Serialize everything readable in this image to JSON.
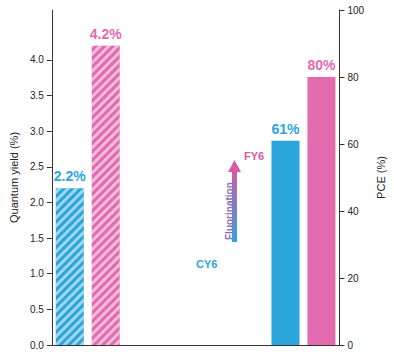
{
  "chart_data": {
    "type": "bar",
    "categories": [
      null,
      null,
      null,
      null,
      null,
      null,
      null,
      null
    ],
    "series": [
      {
        "type": "bar",
        "axis": "y",
        "marker": "hatched",
        "colors": [
          "#2aa6dc",
          "#e36aaf",
          "#2aa6dc",
          "#e36aaf",
          "#2aa6dc",
          "#e36aaf",
          "#2aa6dc",
          "#e36aaf"
        ],
        "values": [
          2.2,
          4.2,
          null,
          null,
          null,
          null,
          null,
          null
        ],
        "value_labels": [
          "2.2%",
          "4.2%",
          null,
          null,
          null,
          null,
          null,
          null
        ]
      },
      {
        "type": "bar",
        "axis": "y2",
        "marker": "solid",
        "colors": [
          "#2aa6dc",
          "#e36aaf",
          "#2aa6dc",
          "#e36aaf",
          "#2aa6dc",
          "#e36aaf",
          "#2aa6dc",
          "#e36aaf"
        ],
        "values": [
          null,
          null,
          null,
          null,
          null,
          null,
          61,
          80
        ],
        "value_labels": [
          null,
          null,
          null,
          null,
          null,
          null,
          "61%",
          "80%"
        ]
      }
    ],
    "y_label": "Quantum yield (%)",
    "y2_label": "PCE (%)",
    "ylim": [
      0,
      4.7
    ],
    "yticks": [
      {
        "value": 0,
        "label": "0.0"
      },
      {
        "value": 0.5,
        "label": "0.5"
      },
      {
        "value": 1,
        "label": "1.0"
      },
      {
        "value": 1.5,
        "label": "1.5"
      },
      {
        "value": 2,
        "label": "2.0"
      },
      {
        "value": 2.5,
        "label": "2.5"
      },
      {
        "value": 3,
        "label": "3.0"
      },
      {
        "value": 3.5,
        "label": "3.5"
      },
      {
        "value": 4,
        "label": "4.0"
      }
    ],
    "y2lim": [
      0,
      100
    ],
    "y2ticks": [
      0,
      20,
      40,
      60,
      80,
      100
    ],
    "data_labels": true,
    "grid": false,
    "tick_labels": "y",
    "annotations": [
      {
        "text": "FY6",
        "color": "#d65aa6"
      },
      {
        "text": "Fluorination",
        "color": "#8a6fc4"
      },
      {
        "text": "CY6",
        "color": "#2aa6dc"
      }
    ]
  }
}
